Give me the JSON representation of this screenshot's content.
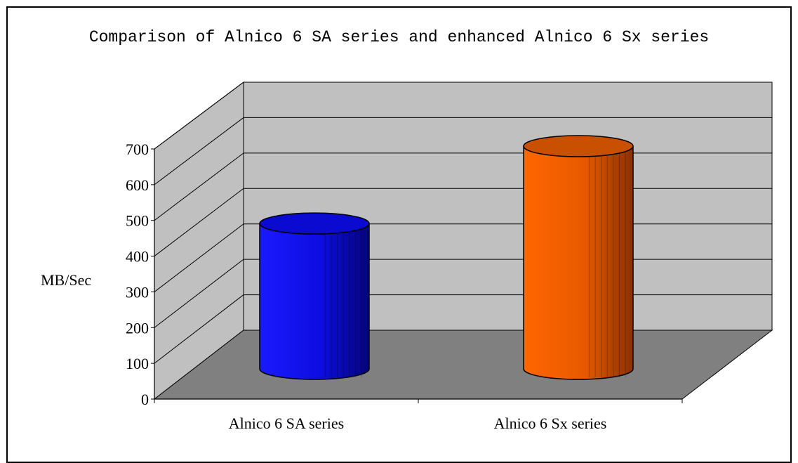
{
  "chart_data": {
    "type": "bar",
    "style": "3d-cylinder",
    "title": "Comparison of Alnico 6 SA series and enhanced Alnico 6 Sx series",
    "xlabel": "",
    "ylabel": "MB/Sec",
    "categories": [
      "Alnico 6 SA series",
      "Alnico 6 Sx series"
    ],
    "values": [
      460,
      705
    ],
    "colors": [
      "#1010f0",
      "#ff6a00"
    ],
    "ylim": [
      0,
      700
    ],
    "yticks": [
      "0",
      "100",
      "200",
      "300",
      "400",
      "500",
      "600",
      "700"
    ],
    "grid": true,
    "legend": "none"
  }
}
